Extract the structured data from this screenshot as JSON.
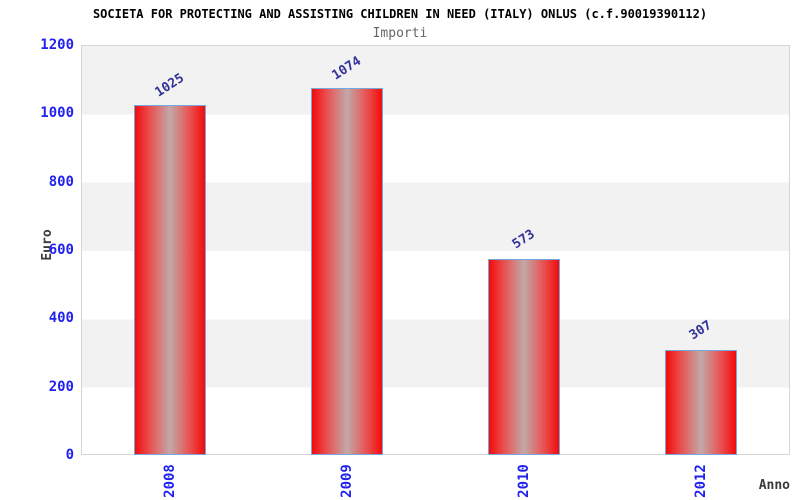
{
  "chart_data": {
    "type": "bar",
    "title": "SOCIETA FOR PROTECTING AND ASSISTING CHILDREN IN NEED (ITALY) ONLUS (c.f.90019390112)",
    "subtitle": "Importi",
    "xlabel": "Anno",
    "ylabel": "Euro",
    "categories": [
      "2008",
      "2009",
      "2010",
      "2012"
    ],
    "values": [
      1025,
      1074,
      573,
      307
    ],
    "ylim": [
      0,
      1200
    ],
    "ytick_step": 200,
    "ytick_labels": [
      "0",
      "200",
      "400",
      "600",
      "800",
      "1000",
      "1200"
    ],
    "grid": "alternating-horizontal-bands",
    "legend": "none",
    "colors": {
      "bar_fill_edge": "#f20c0c",
      "bar_fill_center": "#c2a8a8",
      "bar_border": "#74a9dd",
      "axis_tick_label": "#2222ee",
      "value_label": "#333399",
      "band_gray": "#f2f2f2",
      "band_white": "#ffffff",
      "plot_border": "#d6d6d6",
      "title_color": "#000000",
      "subtitle_color": "#666666",
      "axis_name_color": "#3a3a3a"
    }
  }
}
